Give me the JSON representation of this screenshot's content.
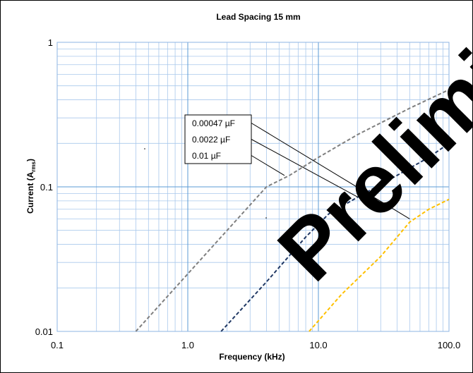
{
  "chart_data": {
    "type": "line",
    "title": "Lead Spacing 15 mm",
    "xlabel": "Frequency (kHz)",
    "ylabel_main": "Current (A",
    "ylabel_sub": "rms",
    "ylabel_close": ")",
    "x_scale": "log",
    "y_scale": "log",
    "xlim": [
      0.1,
      100
    ],
    "ylim": [
      0.01,
      1
    ],
    "x_ticks": [
      {
        "value": 0.1,
        "label": "0.1"
      },
      {
        "value": 1,
        "label": "1.0"
      },
      {
        "value": 10,
        "label": "10.0"
      },
      {
        "value": 100,
        "label": "100.0"
      }
    ],
    "y_ticks": [
      {
        "value": 0.01,
        "label": "0.01"
      },
      {
        "value": 0.1,
        "label": "0.1"
      },
      {
        "value": 1,
        "label": "1"
      }
    ],
    "grid": true,
    "watermark": "Preliminary",
    "series": [
      {
        "name": "0.00047 µF",
        "color": "#7f7f7f",
        "points": [
          [
            0.4,
            0.01
          ],
          [
            1.0,
            0.025
          ],
          [
            2.0,
            0.05
          ],
          [
            4.0,
            0.1
          ],
          [
            6.0,
            0.12
          ],
          [
            10.0,
            0.16
          ],
          [
            20.0,
            0.23
          ],
          [
            50.0,
            0.35
          ],
          [
            100.0,
            0.47
          ]
        ]
      },
      {
        "name": "0.0022 µF",
        "color": "#203864",
        "points": [
          [
            1.8,
            0.01
          ],
          [
            4.0,
            0.022
          ],
          [
            8.0,
            0.045
          ],
          [
            12.0,
            0.065
          ],
          [
            20.0,
            0.085
          ],
          [
            40.0,
            0.12
          ],
          [
            70.0,
            0.16
          ],
          [
            100.0,
            0.2
          ]
        ]
      },
      {
        "name": "0.01  µF",
        "color": "#ffc000",
        "points": [
          [
            8.5,
            0.01
          ],
          [
            15.0,
            0.018
          ],
          [
            30.0,
            0.033
          ],
          [
            50.0,
            0.057
          ],
          [
            70.0,
            0.07
          ],
          [
            100.0,
            0.082
          ]
        ]
      }
    ],
    "legend_box": {
      "labels": [
        "0.00047 µF",
        "0.0022 µF",
        "0.01  µF"
      ]
    },
    "leader_targets": [
      [
        50.0,
        0.06
      ],
      [
        20.0,
        0.085
      ],
      [
        5.5,
        0.12
      ]
    ]
  }
}
